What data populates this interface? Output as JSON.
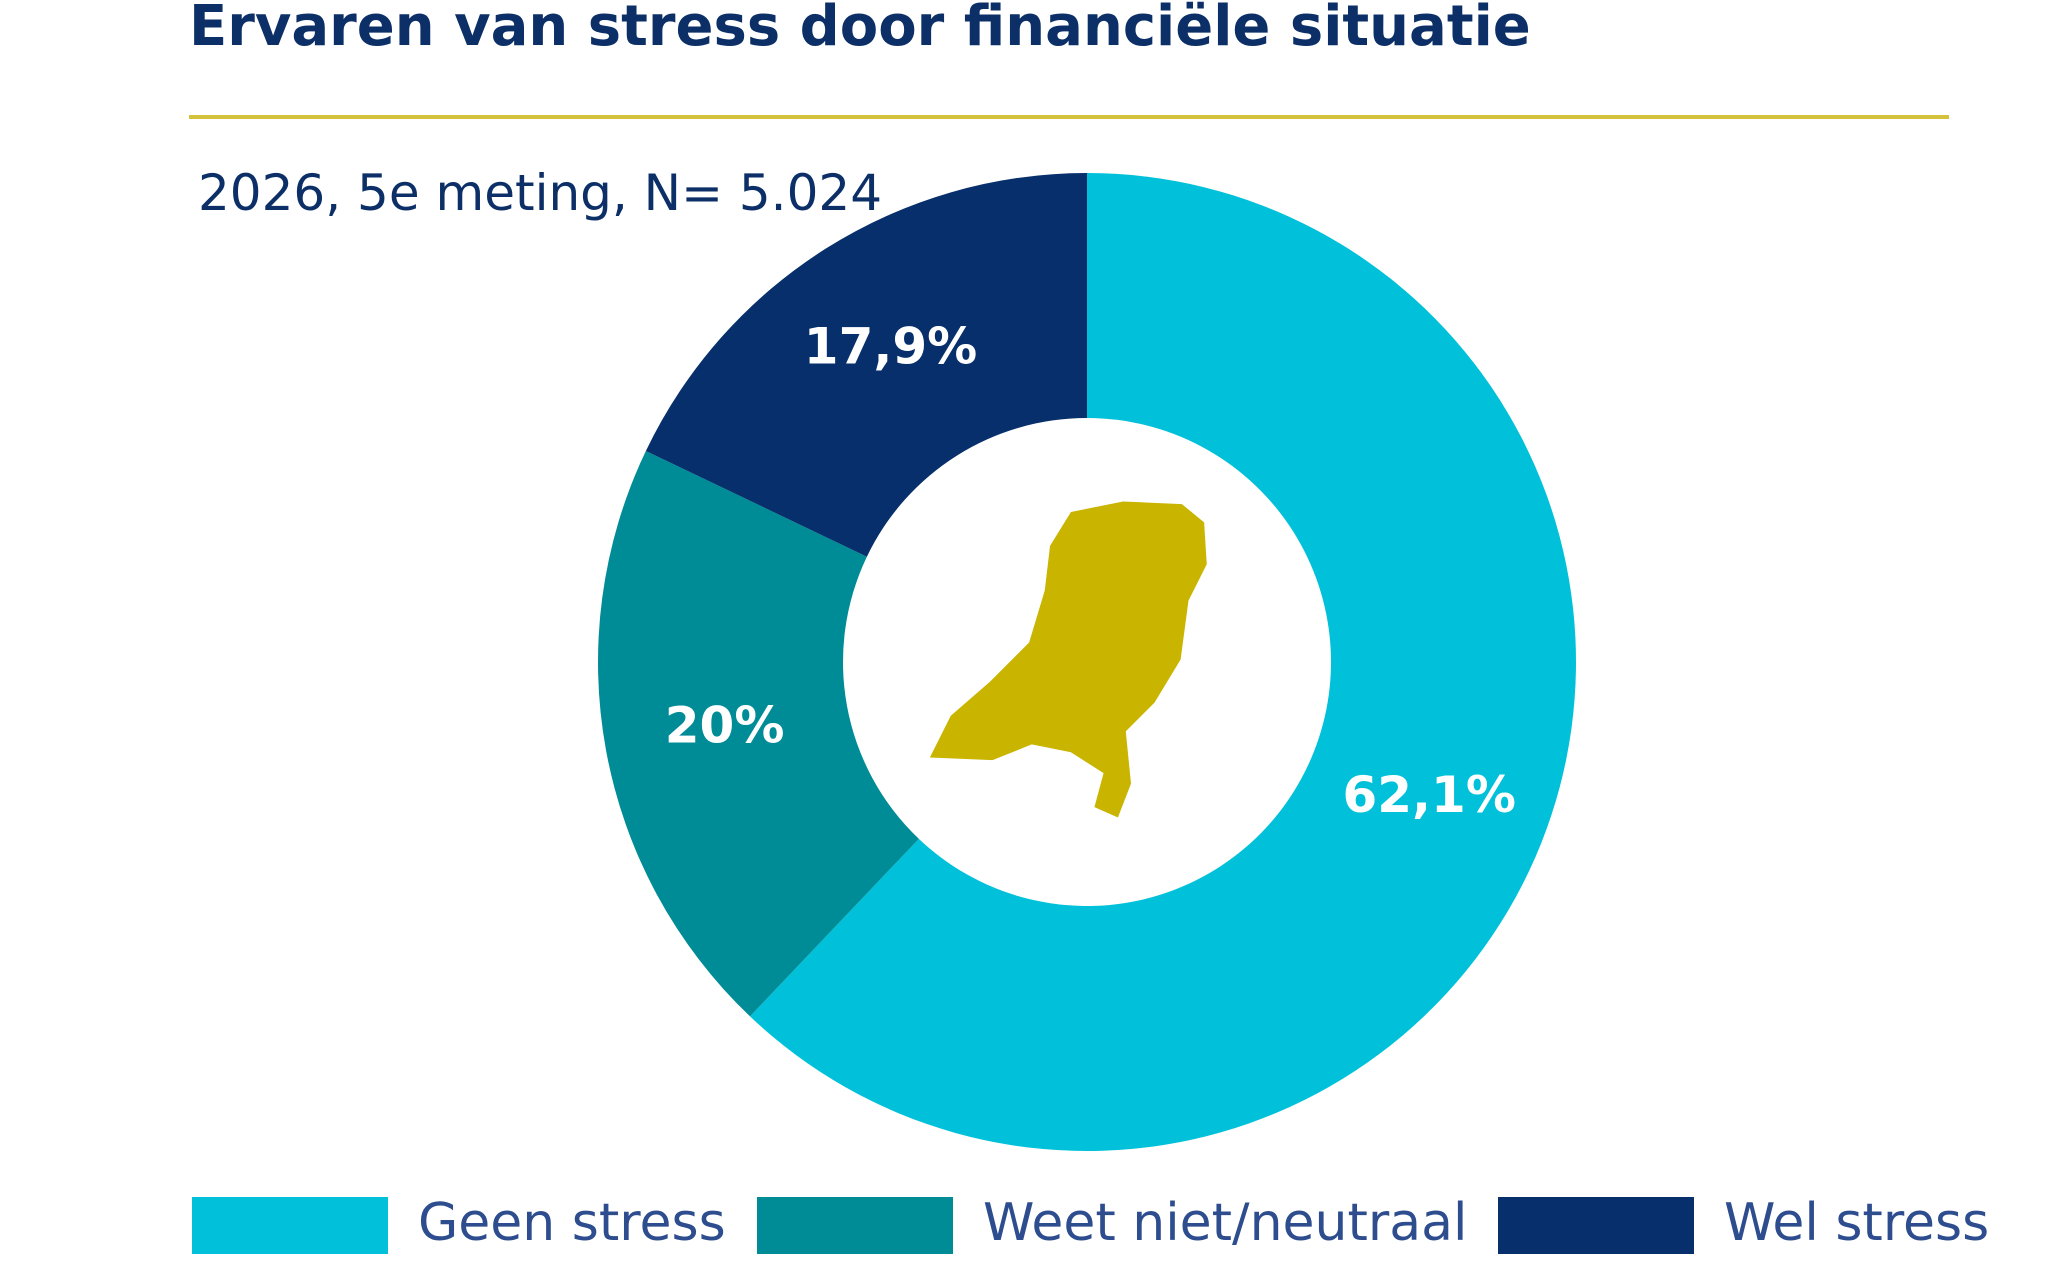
{
  "chart_data": {
    "type": "pie",
    "title": "Ervaren van stress door financiële situatie",
    "subtitle": "2026, 5e meting, N= 5.024",
    "categories": [
      "Geen stress",
      "Weet niet/neutraal",
      "Wel stress"
    ],
    "values": [
      62.1,
      20,
      17.9
    ],
    "value_labels": [
      "62,1%",
      "20%",
      "17,9%"
    ],
    "colors": [
      "#00c1d9",
      "#008c97",
      "#062f6b"
    ],
    "donut": true
  }
}
